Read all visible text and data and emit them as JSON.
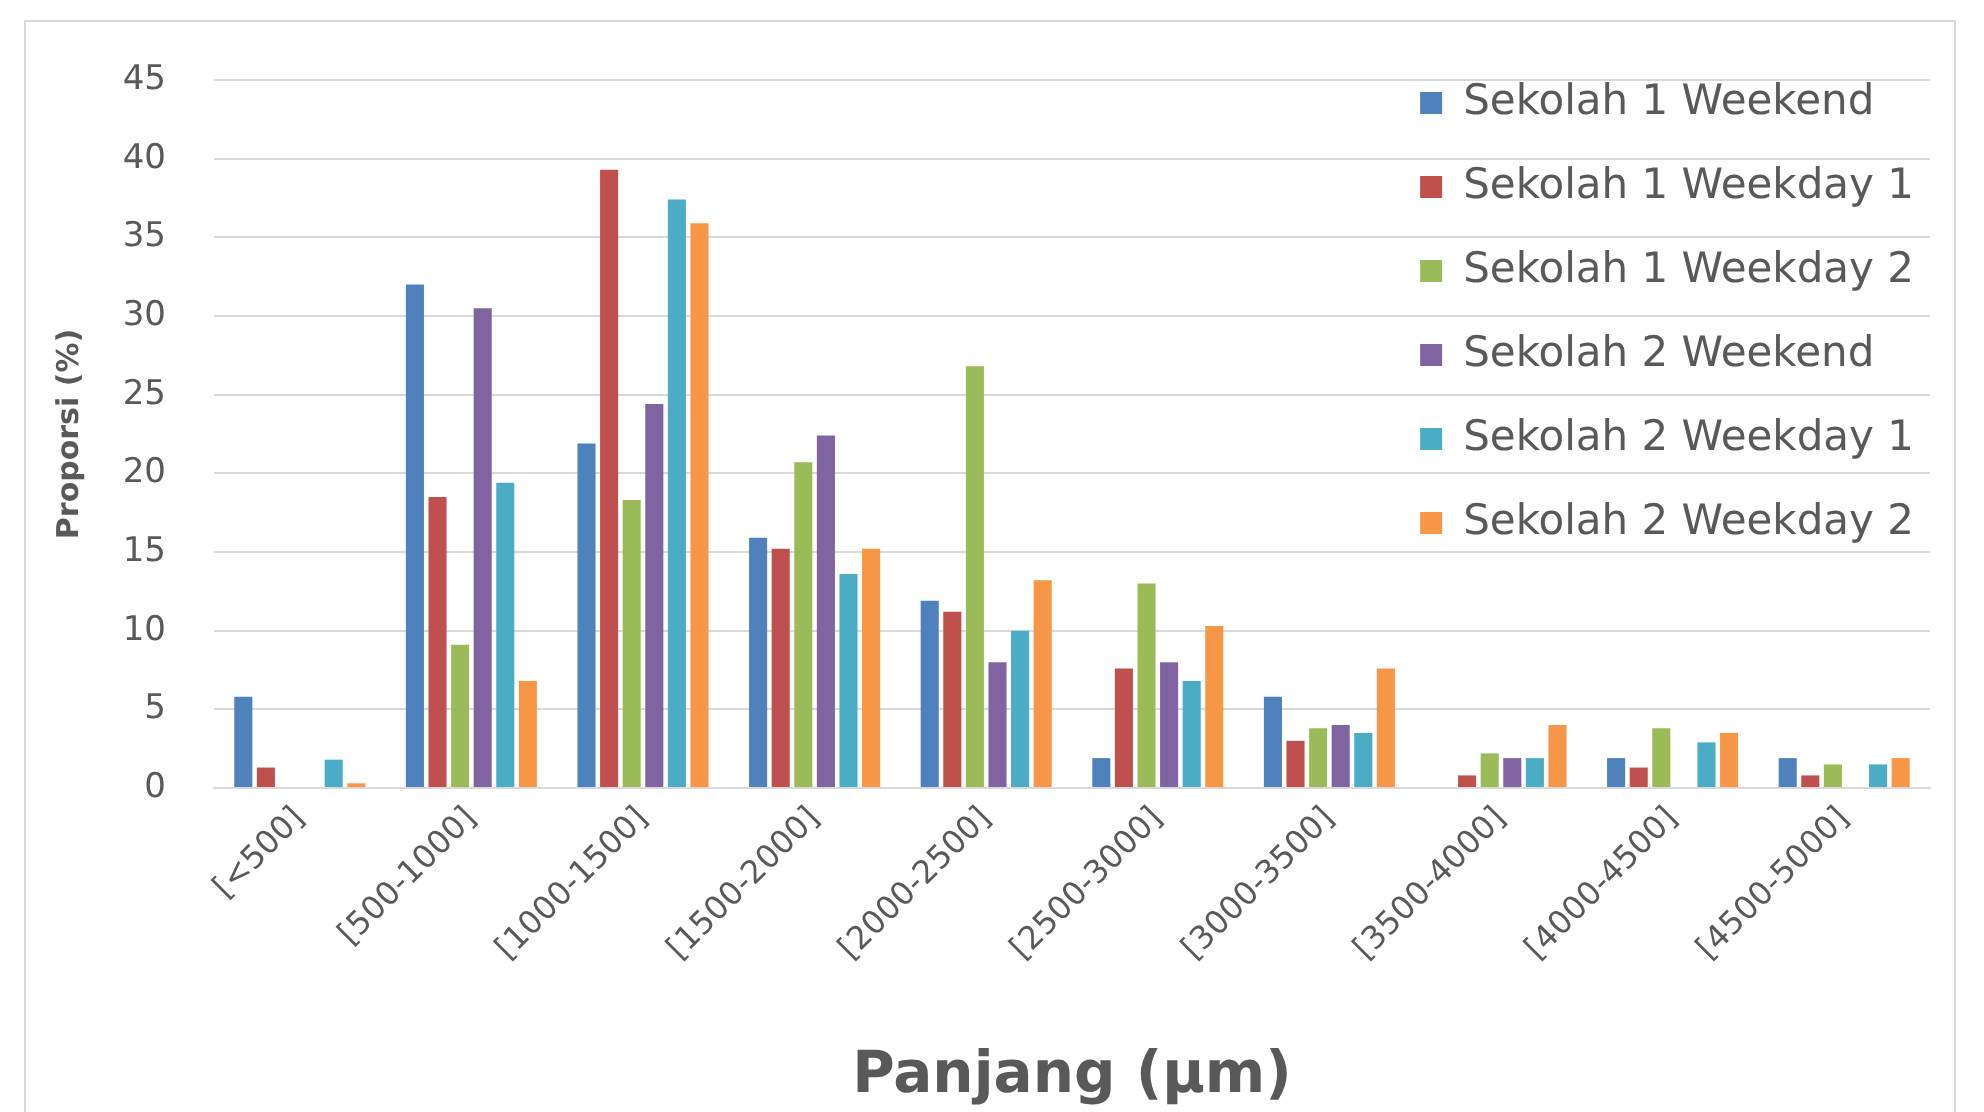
{
  "chart_data": {
    "type": "bar",
    "xlabel": "Panjang (µm)",
    "ylabel": "Proporsi (%)",
    "categories": [
      "[<500]",
      "[500-1000]",
      "[1000-1500]",
      "[1500-2000]",
      "[2000-2500]",
      "[2500-3000]",
      "[3000-3500]",
      "[3500-4000]",
      "[4000-4500]",
      "[4500-5000]"
    ],
    "series": [
      {
        "name": "Sekolah 1 Weekend",
        "color": "#4f81bd",
        "values": [
          5.8,
          32.0,
          21.9,
          15.9,
          11.9,
          1.9,
          5.8,
          0,
          1.9,
          1.9
        ]
      },
      {
        "name": "Sekolah 1 Weekday 1",
        "color": "#c0504d",
        "values": [
          1.3,
          18.5,
          39.3,
          15.2,
          11.2,
          7.6,
          3.0,
          0.8,
          1.3,
          0.8
        ]
      },
      {
        "name": "Sekolah 1 Weekday 2",
        "color": "#9bbb59",
        "values": [
          0,
          9.1,
          18.3,
          20.7,
          26.8,
          13.0,
          3.8,
          2.2,
          3.8,
          1.5
        ]
      },
      {
        "name": "Sekolah 2 Weekend",
        "color": "#8064a2",
        "values": [
          0,
          30.5,
          24.4,
          22.4,
          8.0,
          8.0,
          4.0,
          1.9,
          0,
          0
        ]
      },
      {
        "name": "Sekolah 2 Weekday 1",
        "color": "#4bacc6",
        "values": [
          1.8,
          19.4,
          37.4,
          13.6,
          10.0,
          6.8,
          3.5,
          1.9,
          2.9,
          1.5
        ]
      },
      {
        "name": "Sekolah 2 Weekday 2",
        "color": "#f79646",
        "values": [
          0.3,
          6.8,
          35.9,
          15.2,
          13.2,
          10.3,
          7.6,
          4.0,
          3.5,
          1.9
        ]
      }
    ],
    "ylim": [
      0,
      45
    ],
    "yticks": [
      0,
      5,
      10,
      15,
      20,
      25,
      30,
      35,
      40,
      45
    ],
    "grid": "y",
    "legend": "top right"
  }
}
